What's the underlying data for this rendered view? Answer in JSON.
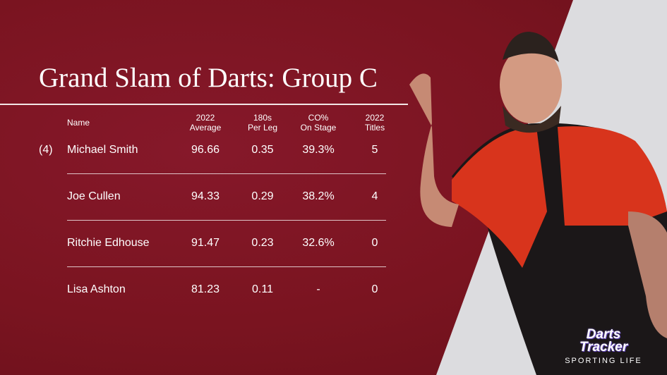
{
  "title": "Grand Slam of Darts: Group C",
  "columns": {
    "name": "Name",
    "average": [
      "2022",
      "Average"
    ],
    "per_leg": [
      "180s",
      "Per Leg"
    ],
    "checkout": [
      "CO%",
      "On Stage"
    ],
    "titles": [
      "2022",
      "Titles"
    ]
  },
  "rows": [
    {
      "seed": "(4)",
      "name": "Michael Smith",
      "average": "96.66",
      "per_leg": "0.35",
      "checkout": "39.3%",
      "titles": "5"
    },
    {
      "seed": "",
      "name": "Joe Cullen",
      "average": "94.33",
      "per_leg": "0.29",
      "checkout": "38.2%",
      "titles": "4"
    },
    {
      "seed": "",
      "name": "Ritchie Edhouse",
      "average": "91.47",
      "per_leg": "0.23",
      "checkout": "32.6%",
      "titles": "0"
    },
    {
      "seed": "",
      "name": "Lisa Ashton",
      "average": "81.23",
      "per_leg": "0.11",
      "checkout": "-",
      "titles": "0"
    }
  ],
  "logo": {
    "main": [
      "Darts",
      "Tracker"
    ],
    "sub": "SPORTING LIFE"
  },
  "colors": {
    "background": "#7a1420",
    "text": "#ffffff",
    "shirt": "#d8341c"
  }
}
